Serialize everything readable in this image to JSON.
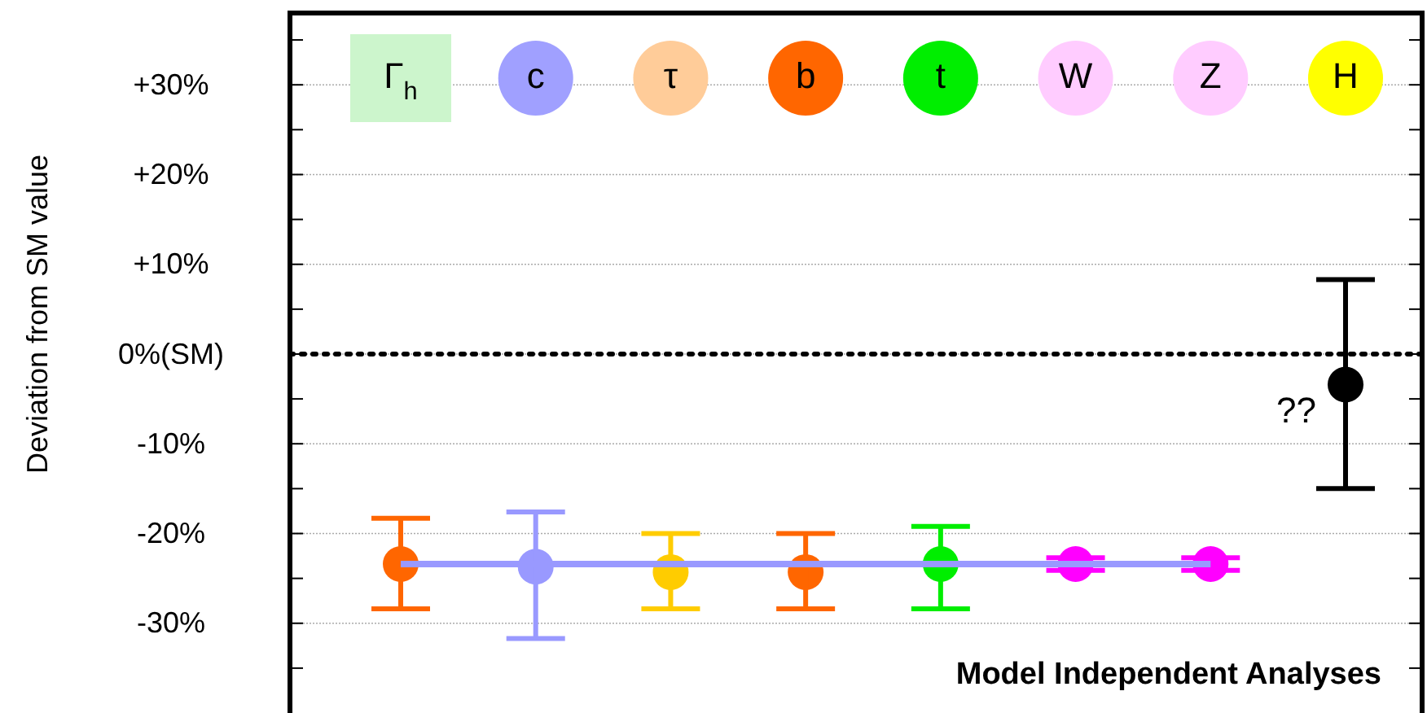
{
  "chart_data": {
    "type": "scatter",
    "ylabel": "Deviation from SM value",
    "categories": [
      "Γ$_{h}$",
      "c",
      "τ",
      "b",
      "t",
      "W",
      "Z",
      "H"
    ],
    "series": [
      {
        "marker": "circle",
        "colors": [
          "#ff6600",
          "#9999ff",
          "#ffcc00",
          "#ff6600",
          "#00ee00",
          "#ff00ff",
          "#ff00ff",
          "#000000"
        ],
        "values": [
          -23.4,
          -23.7,
          -24.3,
          -24.3,
          -23.4,
          -23.4,
          -23.4,
          -3.4
        ],
        "errors": [
          [
            -28.4,
            -18.3
          ],
          [
            -31.7,
            -17.6
          ],
          [
            -28.4,
            -20
          ],
          [
            -28.4,
            -20
          ],
          [
            -28.4,
            -19.2
          ],
          [
            -24.1,
            -22.7
          ],
          [
            -24.1,
            -22.7
          ],
          [
            -15,
            8.3
          ]
        ]
      },
      {
        "type": "line",
        "color": "#9999ff",
        "values": [
          -23.4,
          -23.4,
          -23.4,
          -23.4,
          -23.4,
          -23.4,
          -23.4,
          null
        ]
      }
    ],
    "ylim": [
      -40,
      38
    ],
    "yticks": [
      {
        "value": -35,
        "label": null
      },
      {
        "value": -30,
        "label": "-30%"
      },
      {
        "value": -25,
        "label": null
      },
      {
        "value": -20,
        "label": "-20%"
      },
      {
        "value": -15,
        "label": null
      },
      {
        "value": -10,
        "label": "-10%"
      },
      {
        "value": -5,
        "label": null
      },
      {
        "value": 0,
        "label": "0%(SM)"
      },
      {
        "value": 5,
        "label": null
      },
      {
        "value": 10,
        "label": "+10%"
      },
      {
        "value": 15,
        "label": null
      },
      {
        "value": 20,
        "label": "+20%"
      },
      {
        "value": 25,
        "label": null
      },
      {
        "value": 30,
        "label": "+30%"
      },
      {
        "value": 35,
        "label": null
      }
    ],
    "grid": "y",
    "ref_lines": [
      {
        "axis": "y",
        "value": 0,
        "color": "#000000",
        "line_style": "dotted"
      }
    ],
    "annotations": [
      {
        "text": "??",
        "x": "H",
        "y": -6.5
      },
      "Model Independent Analyses"
    ]
  }
}
